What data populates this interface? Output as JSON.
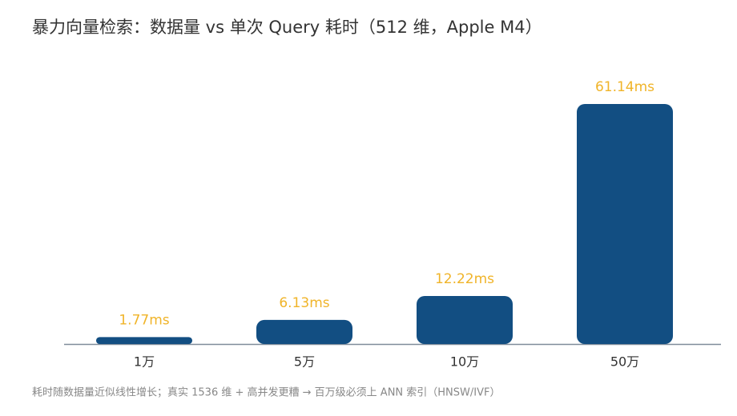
{
  "chart_data": {
    "type": "bar",
    "title": "暴力向量检索：数据量 vs 单次 Query 耗时（512 维，Apple M4）",
    "categories": [
      "1万",
      "5万",
      "10万",
      "50万"
    ],
    "values": [
      1.77,
      6.13,
      12.22,
      61.14
    ],
    "value_labels": [
      "1.77ms",
      "6.13ms",
      "12.22ms",
      "61.14ms"
    ],
    "color": "#124e82",
    "label_color": "#f0b429",
    "footnote": "耗时随数据量近似线性增长；真实 1536 维 + 高并发更糟 → 百万级必须上 ANN 索引（HNSW/IVF）"
  }
}
